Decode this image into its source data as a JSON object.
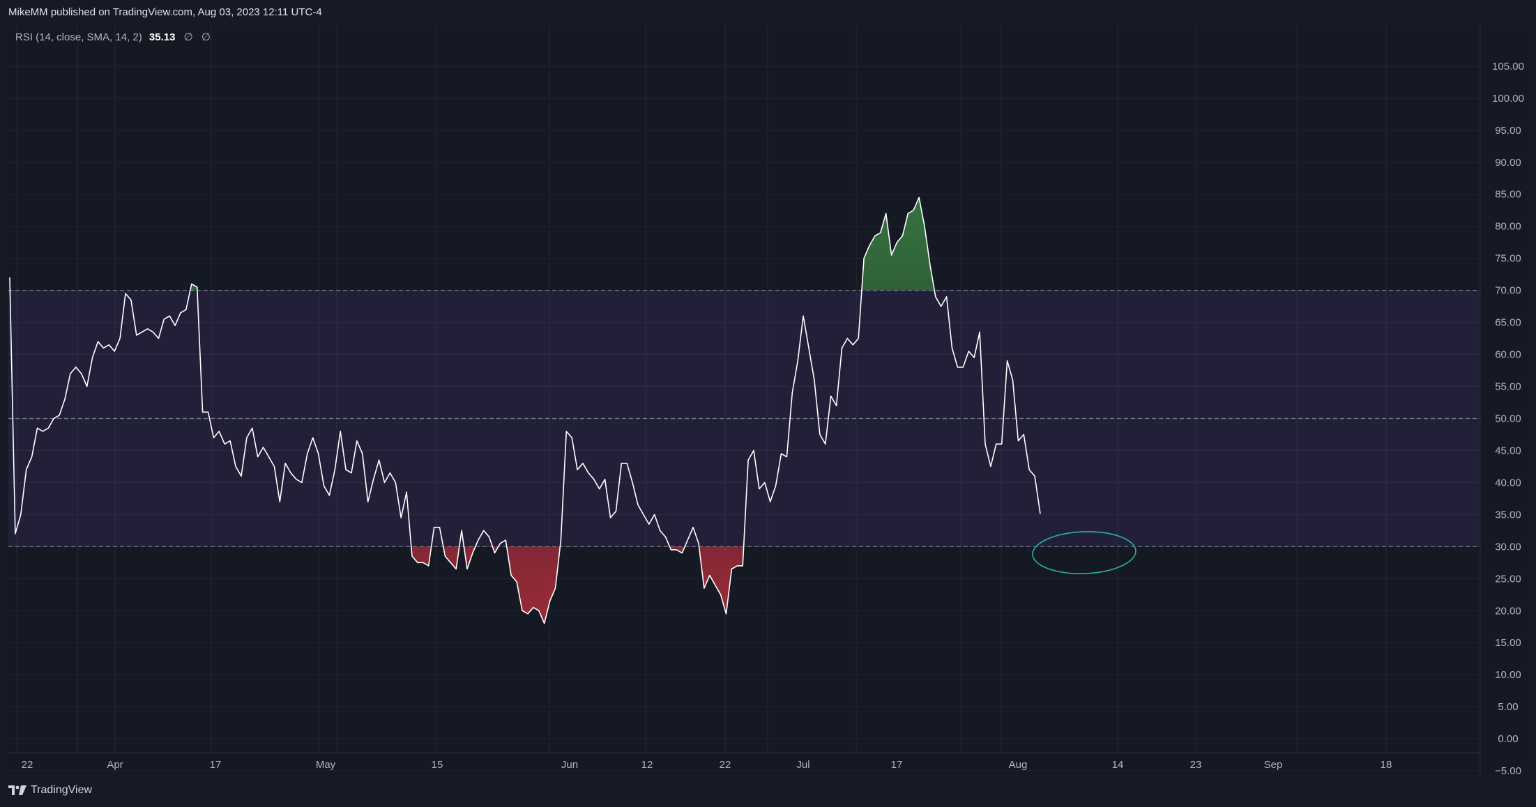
{
  "header": {
    "published": "MikeMM published on TradingView.com, Aug 03, 2023 12:11 UTC-4"
  },
  "legend": {
    "name": "RSI (14, close, SMA, 14, 2)",
    "value": "35.13",
    "ma1": "∅",
    "ma2": "∅"
  },
  "footer": {
    "brand": "TradingView"
  },
  "colors": {
    "background": "#151924",
    "band_fill": "#7e57c2",
    "rsi_line": "#ffffff",
    "overbought_fill": "#4caf50",
    "oversold_fill": "#f23645",
    "annotation": "#2db3a0",
    "grid": "#222632"
  },
  "chart_data": {
    "type": "line",
    "title": "",
    "ylim": [
      -5,
      105
    ],
    "y_ticks": [
      "105.00",
      "100.00",
      "95.00",
      "90.00",
      "85.00",
      "80.00",
      "75.00",
      "70.00",
      "65.00",
      "60.00",
      "55.00",
      "50.00",
      "45.00",
      "40.00",
      "35.00",
      "30.00",
      "25.00",
      "20.00",
      "15.00",
      "10.00",
      "5.00",
      "0.00",
      "−5.00"
    ],
    "x_ticks": [
      "22",
      "Apr",
      "17",
      "May",
      "15",
      "Jun",
      "12",
      "22",
      "Jul",
      "17",
      "Aug",
      "14",
      "23",
      "Sep",
      "18"
    ],
    "levels": {
      "overbought": 70,
      "middle": 50,
      "oversold": 30
    },
    "grid": true,
    "series": [
      {
        "values": [
          72.0,
          32.0,
          35.0,
          42.0,
          44.0,
          48.5,
          48.0,
          48.5,
          50.0,
          50.5,
          53.0,
          57.0,
          58.0,
          57.0,
          55.0,
          59.5,
          62.0,
          61.0,
          61.5,
          60.5,
          62.5,
          69.5,
          68.5,
          63.0,
          63.5,
          64.0,
          63.5,
          62.5,
          65.5,
          66.0,
          64.5,
          66.5,
          67.0,
          71.0,
          70.5,
          51.0,
          51.0,
          47.0,
          48.0,
          46.0,
          46.5,
          42.5,
          41.0,
          47.0,
          48.5,
          44.0,
          45.5,
          44.0,
          42.5,
          37.0,
          43.0,
          41.5,
          40.5,
          40.0,
          44.5,
          47.0,
          44.5,
          39.5,
          38.0,
          42.0,
          48.0,
          42.0,
          41.5,
          46.5,
          44.5,
          37.0,
          40.5,
          43.5,
          40.0,
          41.5,
          40.0,
          34.5,
          38.5,
          28.5,
          27.5,
          27.5,
          27.0,
          33.0,
          33.0,
          28.5,
          27.5,
          26.5,
          32.5,
          26.5,
          29.0,
          31.0,
          32.5,
          31.5,
          29.0,
          30.5,
          31.0,
          25.5,
          24.5,
          20.0,
          19.5,
          20.5,
          20.0,
          18.0,
          21.5,
          23.5,
          31.0,
          48.0,
          47.0,
          42.0,
          43.0,
          41.5,
          40.5,
          39.0,
          40.5,
          34.5,
          35.5,
          43.0,
          43.0,
          40.0,
          36.5,
          35.0,
          33.5,
          35.0,
          32.5,
          31.5,
          29.5,
          29.5,
          29.0,
          31.0,
          33.0,
          30.5,
          23.5,
          25.5,
          24.0,
          22.5,
          19.5,
          26.5,
          27.0,
          27.0,
          43.5,
          45.0,
          39.0,
          40.0,
          37.0,
          39.5,
          44.5,
          44.0,
          54.0,
          59.0,
          66.0,
          61.0,
          56.0,
          47.5,
          46.0,
          53.5,
          52.0,
          61.0,
          62.5,
          61.5,
          62.5,
          75.0,
          77.0,
          78.5,
          79.0,
          82.0,
          75.5,
          77.5,
          78.5,
          82.0,
          82.5,
          84.5,
          80.0,
          74.0,
          69.0,
          67.5,
          69.0,
          61.0,
          58.0,
          58.0,
          60.5,
          59.5,
          63.5,
          46.0,
          42.5,
          46.0,
          46.0,
          59.0,
          56.0,
          46.5,
          47.5,
          42.0,
          41.0,
          35.13
        ]
      }
    ],
    "annotations": [
      {
        "type": "ellipse",
        "label": ""
      }
    ]
  }
}
